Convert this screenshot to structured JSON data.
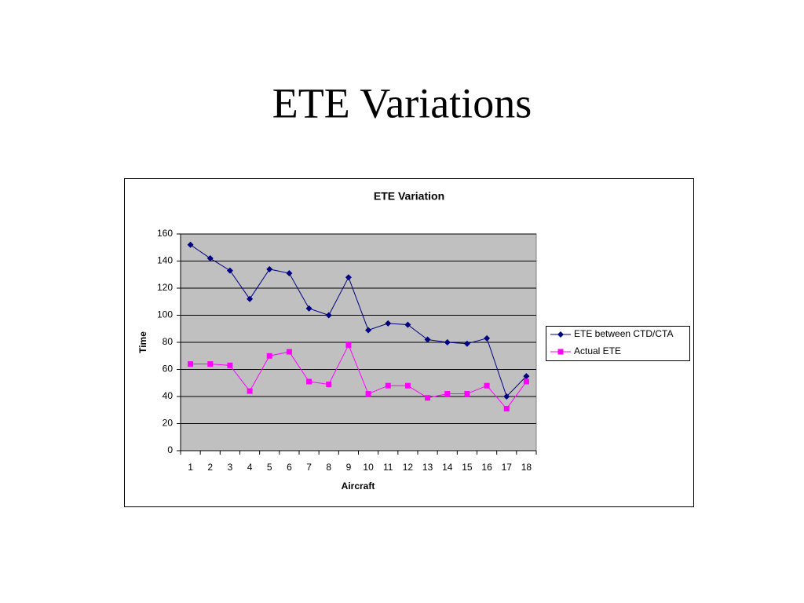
{
  "slide_title": "ETE Variations",
  "chart_data": {
    "type": "line",
    "title": "ETE Variation",
    "x_label": "Aircraft",
    "y_label": "Time",
    "categories": [
      "1",
      "2",
      "3",
      "4",
      "5",
      "6",
      "7",
      "8",
      "9",
      "10",
      "11",
      "12",
      "13",
      "14",
      "15",
      "16",
      "17",
      "18"
    ],
    "series": [
      {
        "name": "ETE between CTD/CTA",
        "color": "#000080",
        "marker": "diamond",
        "values": [
          152,
          142,
          133,
          112,
          134,
          131,
          105,
          100,
          128,
          89,
          94,
          93,
          82,
          80,
          79,
          83,
          40,
          55
        ]
      },
      {
        "name": "Actual ETE",
        "color": "#ff00ff",
        "marker": "square",
        "values": [
          64,
          64,
          63,
          44,
          70,
          73,
          51,
          49,
          78,
          42,
          48,
          48,
          39,
          42,
          42,
          48,
          31,
          51
        ]
      }
    ],
    "ylim": [
      0,
      160
    ],
    "yticks": [
      0,
      20,
      40,
      60,
      80,
      100,
      120,
      140,
      160
    ],
    "grid": true,
    "plot_background": "#c0c0c0",
    "legend": "right"
  }
}
